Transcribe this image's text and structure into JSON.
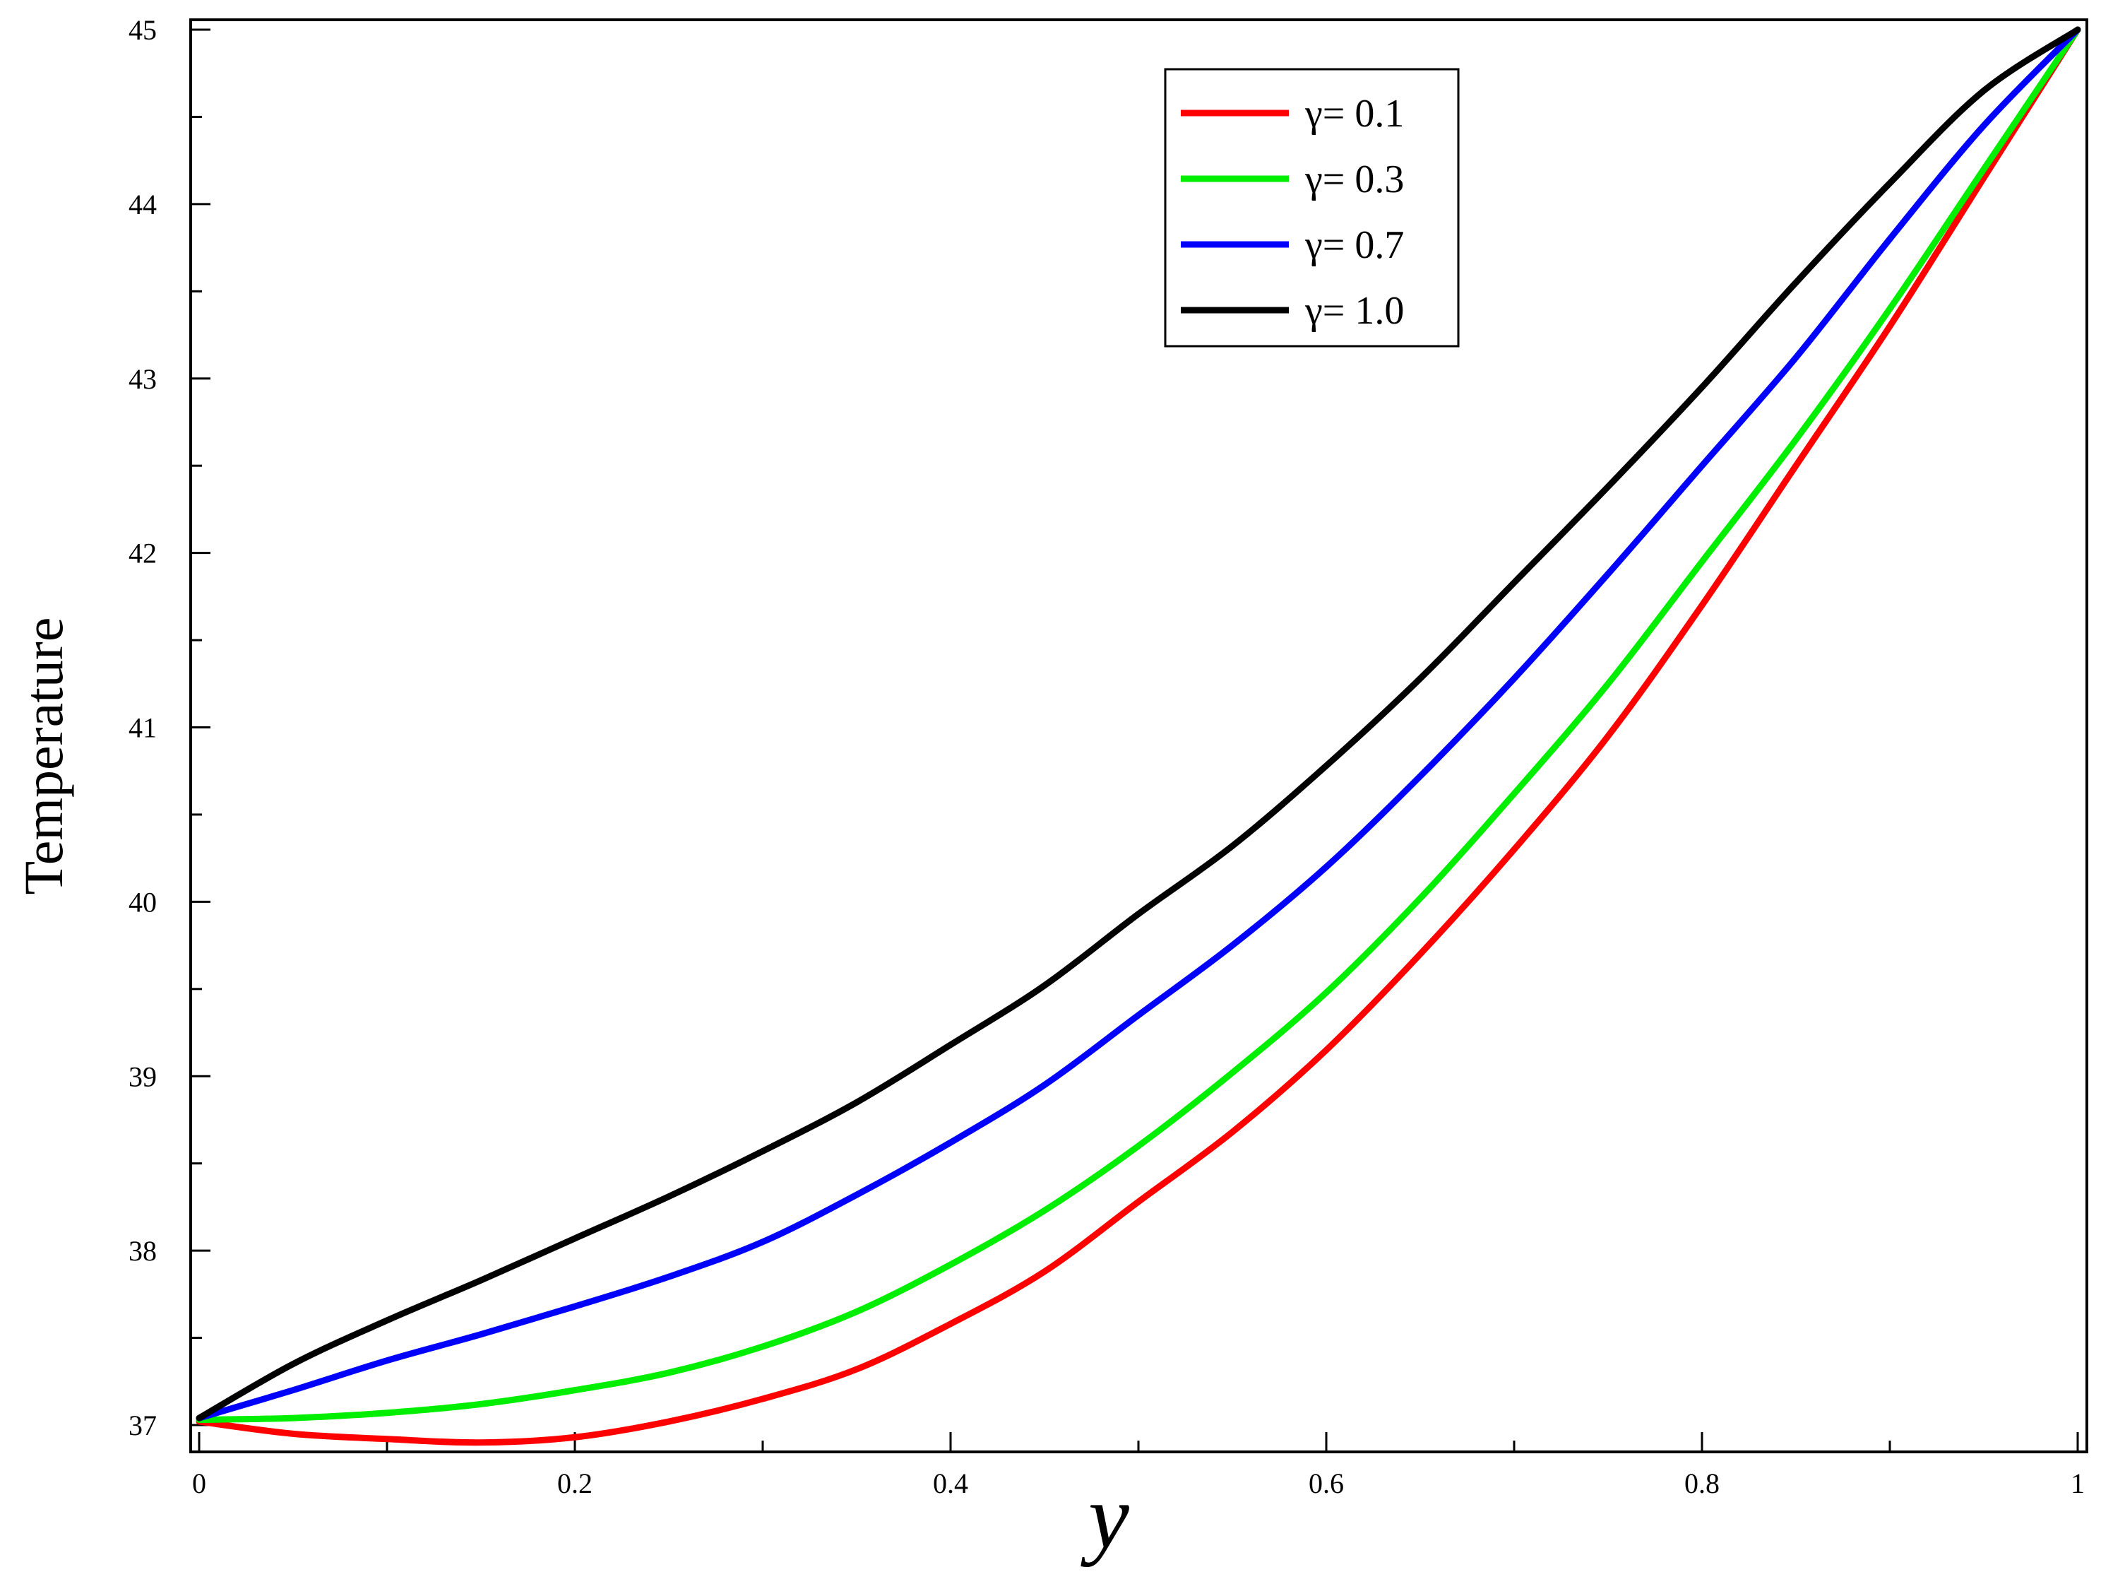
{
  "chart_data": {
    "type": "line",
    "xlabel": "y",
    "ylabel": "Temperature",
    "xlim": [
      0,
      1
    ],
    "ylim": [
      37,
      45
    ],
    "x_ticks": [
      "0",
      "0.2",
      "0.4",
      "0.6",
      "0.8",
      "1"
    ],
    "y_ticks": [
      "37",
      "38",
      "39",
      "40",
      "41",
      "42",
      "43",
      "44",
      "45"
    ],
    "grid": false,
    "legend_position": "top-right",
    "series": [
      {
        "name": "γ= 0.1",
        "color": "#ff0000",
        "x": [
          0,
          0.05,
          0.1,
          0.15,
          0.2,
          0.25,
          0.3,
          0.35,
          0.4,
          0.45,
          0.5,
          0.55,
          0.6,
          0.65,
          0.7,
          0.75,
          0.8,
          0.85,
          0.9,
          0.95,
          1.0
        ],
        "y": [
          37.02,
          36.95,
          36.92,
          36.9,
          36.93,
          37.02,
          37.15,
          37.32,
          37.58,
          37.88,
          38.28,
          38.68,
          39.15,
          39.7,
          40.3,
          40.95,
          41.7,
          42.5,
          43.3,
          44.15,
          45.0
        ]
      },
      {
        "name": "γ= 0.3",
        "color": "#00ee00",
        "x": [
          0,
          0.05,
          0.1,
          0.15,
          0.2,
          0.25,
          0.3,
          0.35,
          0.4,
          0.45,
          0.5,
          0.55,
          0.6,
          0.65,
          0.7,
          0.75,
          0.8,
          0.85,
          0.9,
          0.95,
          1.0
        ],
        "y": [
          37.03,
          37.04,
          37.07,
          37.12,
          37.2,
          37.3,
          37.45,
          37.65,
          37.92,
          38.23,
          38.6,
          39.02,
          39.48,
          40.02,
          40.62,
          41.25,
          41.95,
          42.65,
          43.4,
          44.2,
          45.0
        ]
      },
      {
        "name": "γ= 0.7",
        "color": "#0000ff",
        "x": [
          0,
          0.05,
          0.1,
          0.15,
          0.2,
          0.25,
          0.3,
          0.35,
          0.4,
          0.45,
          0.5,
          0.55,
          0.6,
          0.65,
          0.7,
          0.75,
          0.8,
          0.85,
          0.9,
          0.95,
          1.0
        ],
        "y": [
          37.04,
          37.2,
          37.37,
          37.52,
          37.68,
          37.85,
          38.05,
          38.32,
          38.62,
          38.95,
          39.35,
          39.75,
          40.2,
          40.72,
          41.28,
          41.88,
          42.5,
          43.12,
          43.8,
          44.45,
          45.0
        ]
      },
      {
        "name": "γ= 1.0",
        "color": "#000000",
        "x": [
          0,
          0.05,
          0.1,
          0.15,
          0.2,
          0.25,
          0.3,
          0.35,
          0.4,
          0.45,
          0.5,
          0.55,
          0.6,
          0.65,
          0.7,
          0.75,
          0.8,
          0.85,
          0.9,
          0.95,
          1.0
        ],
        "y": [
          37.04,
          37.35,
          37.6,
          37.83,
          38.07,
          38.31,
          38.57,
          38.85,
          39.18,
          39.52,
          39.93,
          40.32,
          40.78,
          41.28,
          41.83,
          42.38,
          42.95,
          43.55,
          44.12,
          44.65,
          45.0
        ]
      }
    ]
  }
}
